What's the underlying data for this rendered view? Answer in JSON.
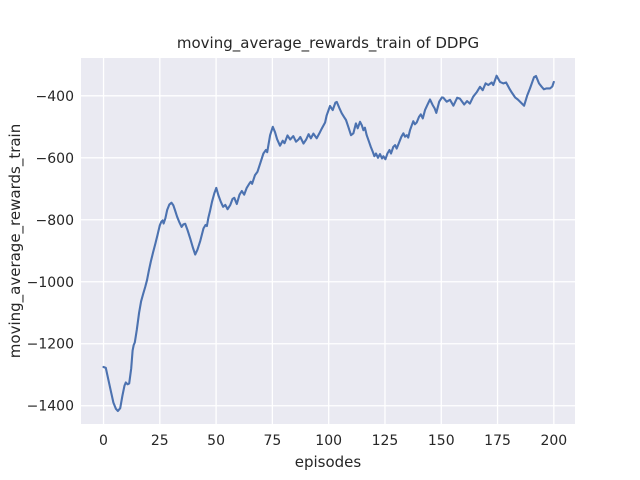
{
  "figure": {
    "background": "#ffffff"
  },
  "chart_data": {
    "type": "line",
    "title": "moving_average_rewards_train of DDPG",
    "xlabel": "episodes",
    "ylabel": "moving_average_rewards_train",
    "x_ticks": [
      0,
      25,
      50,
      75,
      100,
      125,
      150,
      175,
      200
    ],
    "y_ticks": [
      -400,
      -600,
      -800,
      -1000,
      -1200,
      -1400
    ],
    "xlim": [
      -10,
      209.4
    ],
    "ylim": [
      -1459,
      -278
    ],
    "grid": true,
    "legend": "none",
    "style": {
      "axes_background": "#eaeaf2",
      "grid_color": "#ffffff",
      "line_color": "#4c72b0",
      "text_color": "#262626"
    },
    "series": [
      {
        "name": "moving_average_rewards_train",
        "x": [
          0,
          1,
          2.2,
          3.4,
          4.4,
          5.5,
          6.4,
          7.4,
          8.4,
          9.3,
          9.9,
          10.7,
          11.4,
          12.3,
          12.9,
          13.4,
          13.9,
          14.8,
          15.8,
          16.7,
          17.6,
          18.5,
          19.3,
          20.1,
          21,
          22,
          23,
          24,
          25,
          25.7,
          26.3,
          26.7,
          27.5,
          28.3,
          29.2,
          30.2,
          31,
          31.8,
          32.7,
          33.6,
          34.7,
          35.5,
          36.3,
          37.3,
          38.5,
          39.6,
          40.7,
          41.7,
          43,
          44.4,
          45.3,
          45.9,
          46.6,
          47.4,
          48.2,
          49.2,
          50.1,
          51,
          52.1,
          53.1,
          54.1,
          55.1,
          56.3,
          57.3,
          58.1,
          59.2,
          60.4,
          61.4,
          62.5,
          63.6,
          64.8,
          65.4,
          66,
          67.3,
          68.4,
          69.6,
          71,
          72.1,
          72.7,
          74,
          75.2,
          76.2,
          77.1,
          78.4,
          79.6,
          80.4,
          81.7,
          82.9,
          84.3,
          85.5,
          86.6,
          87.4,
          88.8,
          90,
          91.1,
          92.1,
          93.2,
          94.7,
          95.9,
          96.9,
          98.4,
          99.1,
          100.6,
          101.8,
          103,
          103.6,
          104.7,
          105.8,
          106.8,
          107.7,
          108.7,
          109.9,
          111,
          112.1,
          112.9,
          113.9,
          114.7,
          115.4,
          116.1,
          116.9,
          117.9,
          118.7,
          119.6,
          120.3,
          121,
          121.9,
          122.8,
          123.7,
          124.3,
          125.2,
          126.1,
          127,
          127.7,
          128.7,
          129.5,
          130.2,
          131.4,
          132.3,
          133.2,
          133.9,
          134.7,
          135.3,
          136.1,
          136.9,
          137.6,
          138.3,
          139.1,
          140.1,
          140.9,
          141.8,
          142.8,
          143.8,
          145,
          146.2,
          147.1,
          147.8,
          149.1,
          150.3,
          150.9,
          152.4,
          153.9,
          155.4,
          157.1,
          158.3,
          160.2,
          161.5,
          162.7,
          164.2,
          165.7,
          167.2,
          168.4,
          169.7,
          170.9,
          172.4,
          173.1,
          174.6,
          176.1,
          177.6,
          178.8,
          180.2,
          181.3,
          182.8,
          184,
          185,
          186.8,
          188.2,
          189.4,
          191.2,
          192.1,
          193.4,
          194.6,
          195.6,
          196.8,
          198.3,
          199.3,
          200
        ],
        "y": [
          -1275,
          -1278,
          -1318,
          -1358,
          -1390,
          -1410,
          -1417,
          -1408,
          -1368,
          -1335,
          -1325,
          -1331,
          -1328,
          -1280,
          -1222,
          -1204,
          -1196,
          -1155,
          -1100,
          -1063,
          -1040,
          -1017,
          -995,
          -965,
          -935,
          -905,
          -878,
          -848,
          -818,
          -806,
          -802,
          -812,
          -795,
          -768,
          -751,
          -745,
          -753,
          -770,
          -790,
          -807,
          -823,
          -815,
          -813,
          -833,
          -860,
          -888,
          -912,
          -897,
          -868,
          -828,
          -817,
          -820,
          -793,
          -769,
          -742,
          -715,
          -697,
          -720,
          -742,
          -758,
          -752,
          -766,
          -752,
          -733,
          -729,
          -749,
          -719,
          -707,
          -719,
          -697,
          -683,
          -677,
          -684,
          -656,
          -645,
          -618,
          -586,
          -575,
          -582,
          -527,
          -500,
          -518,
          -540,
          -561,
          -545,
          -553,
          -528,
          -541,
          -530,
          -548,
          -541,
          -533,
          -554,
          -541,
          -524,
          -537,
          -522,
          -537,
          -521,
          -506,
          -486,
          -464,
          -433,
          -446,
          -422,
          -420,
          -439,
          -456,
          -468,
          -478,
          -500,
          -527,
          -521,
          -489,
          -505,
          -484,
          -495,
          -511,
          -503,
          -527,
          -548,
          -565,
          -581,
          -595,
          -586,
          -600,
          -588,
          -602,
          -595,
          -605,
          -586,
          -575,
          -586,
          -565,
          -559,
          -570,
          -548,
          -532,
          -521,
          -532,
          -527,
          -535,
          -511,
          -495,
          -482,
          -492,
          -486,
          -468,
          -460,
          -473,
          -446,
          -430,
          -412,
          -430,
          -441,
          -455,
          -419,
          -405,
          -406,
          -419,
          -413,
          -432,
          -406,
          -409,
          -428,
          -417,
          -425,
          -403,
          -389,
          -371,
          -382,
          -360,
          -365,
          -357,
          -365,
          -335,
          -355,
          -360,
          -357,
          -376,
          -389,
          -405,
          -412,
          -419,
          -432,
          -398,
          -376,
          -340,
          -336,
          -360,
          -371,
          -379,
          -376,
          -376,
          -370,
          -355
        ]
      }
    ]
  }
}
